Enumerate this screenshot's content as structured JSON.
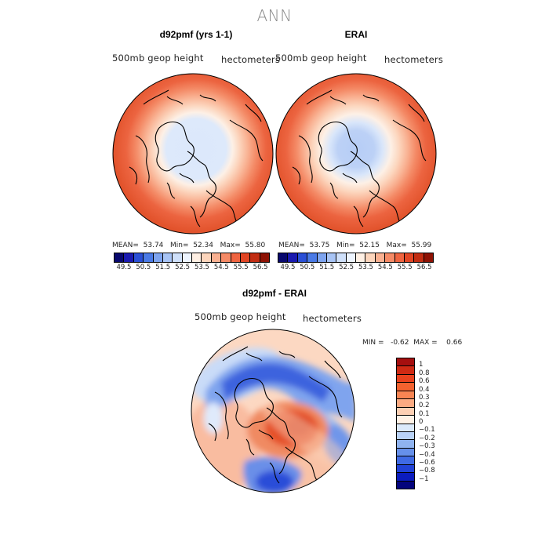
{
  "page": {
    "title": "ANN"
  },
  "panels": [
    {
      "title": "d92pmf (yrs 1-1)",
      "left_label": "500mb  geop  height",
      "right_label": "hectometers",
      "stats": {
        "mean_label": "MEAN=",
        "mean": "53.74",
        "min_label": "Min=",
        "min": "52.34",
        "max_label": "Max=",
        "max": "55.80"
      }
    },
    {
      "title": "ERAI",
      "left_label": "500mb  geop  height",
      "right_label": "hectometers",
      "stats": {
        "mean_label": "MEAN=",
        "mean": "53.75",
        "min_label": "Min=",
        "min": "52.15",
        "max_label": "Max=",
        "max": "55.99"
      }
    }
  ],
  "colorbar_abs": {
    "tick_labels": [
      "49.5",
      "50.5",
      "51.5",
      "52.5",
      "53.5",
      "54.5",
      "55.5",
      "56.5"
    ],
    "colors": [
      "#08086e",
      "#1a1ab0",
      "#2a4fd6",
      "#4a7ae6",
      "#7ea4ef",
      "#a8c4f5",
      "#cfe0fa",
      "#eef5ff",
      "#fff0e4",
      "#fcd5bc",
      "#f9b091",
      "#f58a66",
      "#ef6440",
      "#e14524",
      "#c22d12",
      "#8e1204"
    ]
  },
  "diff_panel": {
    "title": "d92pmf - ERAI",
    "left_label": "500mb  geop  height",
    "right_label": "hectometers",
    "min_label": "MIN =",
    "min": "-0.62",
    "max_label": "MAX =",
    "max": "0.66"
  },
  "colorbar_diff": {
    "tick_labels": [
      "1",
      "0.8",
      "0.6",
      "0.4",
      "0.3",
      "0.2",
      "0.1",
      "0",
      "−0.1",
      "−0.2",
      "−0.3",
      "−0.4",
      "−0.6",
      "−0.8",
      "−1"
    ],
    "colors": [
      "#a50f0f",
      "#cf2a14",
      "#e9421e",
      "#f4622f",
      "#f88553",
      "#fbaa82",
      "#fdd0b4",
      "#fff2e6",
      "#dceafb",
      "#b9d2f6",
      "#8fb3f0",
      "#6690ea",
      "#3f6ae4",
      "#2142d6",
      "#0b1cbe",
      "#04047d"
    ]
  }
}
